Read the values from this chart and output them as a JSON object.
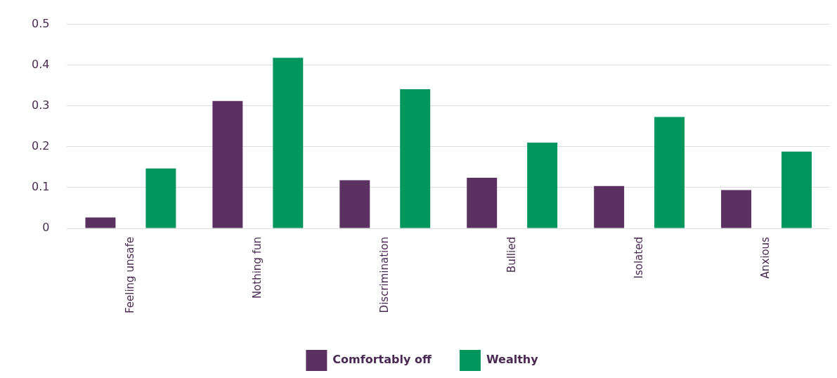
{
  "chart_data": {
    "type": "bar",
    "categories": [
      "Feeling unsafe",
      "Nothing fun",
      "Discrimination",
      "Bullied",
      "Isolated",
      "Anxious"
    ],
    "series": [
      {
        "name": "Comfortably off",
        "color": "#5b3162",
        "values": [
          0.027,
          0.312,
          0.118,
          0.124,
          0.104,
          0.094
        ]
      },
      {
        "name": "Wealthy",
        "color": "#00965e",
        "values": [
          0.147,
          0.418,
          0.341,
          0.21,
          0.273,
          0.188
        ]
      }
    ],
    "ylim": [
      0,
      0.5
    ],
    "yticks": [
      0,
      0.1,
      0.2,
      0.3,
      0.4,
      0.5
    ],
    "grid": "y",
    "legend": "bottom"
  }
}
